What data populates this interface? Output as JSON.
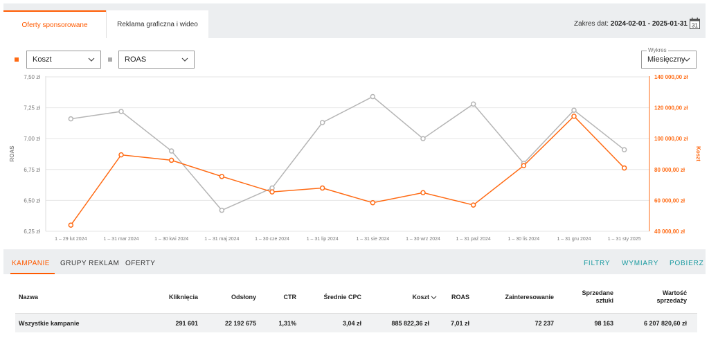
{
  "tabs": [
    {
      "label": "Oferty sponsorowane",
      "active": true
    },
    {
      "label": "Reklama graficzna i wideo",
      "active": false
    }
  ],
  "date_range": {
    "prefix": "Zakres dat:",
    "value": "2024-02-01 - 2025-01-31",
    "calendar_day": "31"
  },
  "controls": {
    "metric1": "Koszt",
    "metric2": "ROAS",
    "chart_type_label": "Wykres",
    "chart_type": "Miesięczny"
  },
  "colors": {
    "accent": "#ff6a13",
    "roas": "#b5b5b5",
    "link": "#1a9aa0"
  },
  "chart_data": {
    "type": "line",
    "categories": [
      "1 – 29 lut 2024",
      "1 – 31 mar 2024",
      "1 – 30 kwi 2024",
      "1 – 31 maj 2024",
      "1 – 30 cze 2024",
      "1 – 31 lip 2024",
      "1 – 31 sie 2024",
      "1 – 30 wrz 2024",
      "1 – 31 paź 2024",
      "1 – 30 lis 2024",
      "1 – 31 gru 2024",
      "1 – 31 sty 2025"
    ],
    "series": [
      {
        "name": "ROAS",
        "axis": "left",
        "color": "#b5b5b5",
        "values": [
          7.16,
          7.22,
          6.9,
          6.42,
          6.6,
          7.13,
          7.34,
          7.0,
          7.28,
          6.8,
          7.23,
          6.91
        ]
      },
      {
        "name": "Koszt",
        "axis": "right",
        "color": "#ff6a13",
        "values": [
          44000,
          89500,
          86000,
          75500,
          65500,
          68000,
          58500,
          65000,
          57000,
          82500,
          114500,
          81000
        ]
      }
    ],
    "ylabel": "ROAS",
    "ylabel_right": "Koszt",
    "ylim": [
      6.25,
      7.5
    ],
    "ylim_right": [
      40000,
      140000
    ],
    "yticks_left": [
      "6,25 zł",
      "6,50 zł",
      "6,75 zł",
      "7,00 zł",
      "7,25 zł",
      "7,50 zł"
    ],
    "yticks_right": [
      "40 000,00 zł",
      "60 000,00 zł",
      "80 000,00 zł",
      "100 000,00 zł",
      "120 000,00 zł",
      "140 000,00 zł"
    ],
    "grid": true
  },
  "subnav": {
    "tabs": [
      "KAMPANIE",
      "GRUPY REKLAM",
      "OFERTY"
    ],
    "actions": [
      "FILTRY",
      "WYMIARY",
      "POBIERZ"
    ]
  },
  "table": {
    "headers": {
      "name": "Nazwa",
      "clicks": "Kliknięcia",
      "views": "Odsłony",
      "ctr": "CTR",
      "cpc": "Średnie CPC",
      "cost": "Koszt",
      "roas": "ROAS",
      "interest": "Zainteresowanie",
      "sold_1": "Sprzedane",
      "sold_2": "sztuki",
      "value_1": "Wartość",
      "value_2": "sprzedaży"
    },
    "total_row": {
      "name": "Wszystkie kampanie",
      "clicks": "291 601",
      "views": "22 192 675",
      "ctr": "1,31%",
      "cpc": "3,04 zł",
      "cost": "885 822,36 zł",
      "roas": "7,01 zł",
      "interest": "72 237",
      "sold": "98 163",
      "value": "6 207 820,60 zł"
    }
  }
}
